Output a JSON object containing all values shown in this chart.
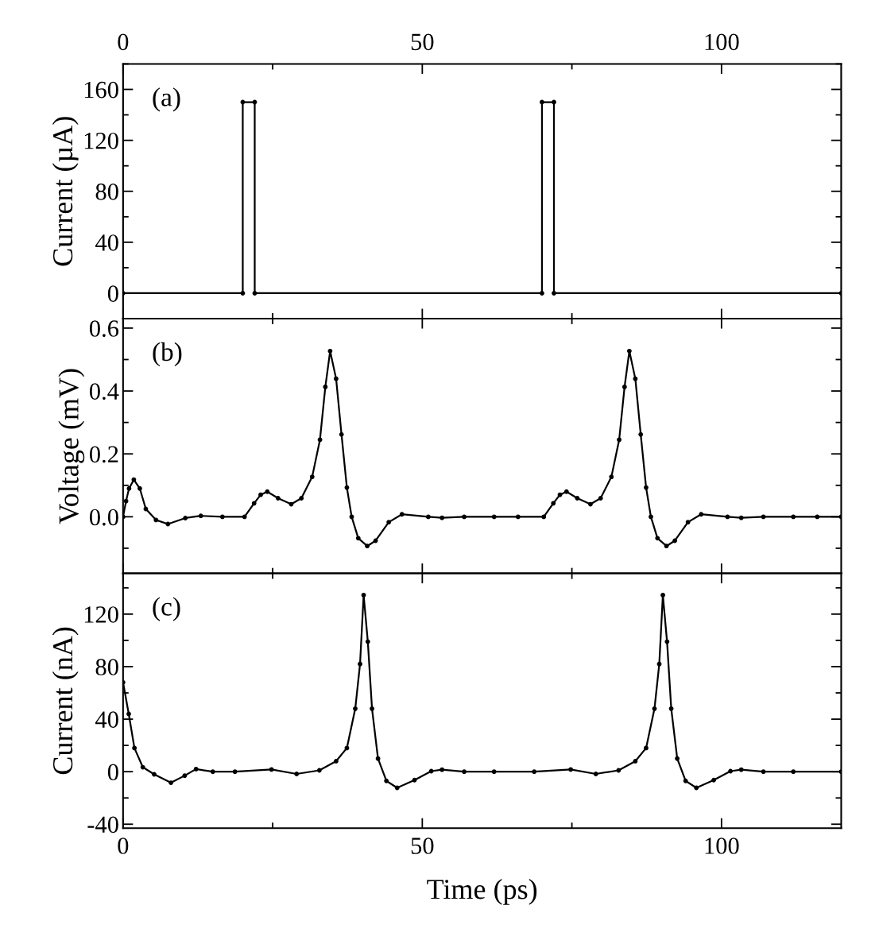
{
  "chart_data": [
    {
      "type": "line",
      "ylabel": "Current (µA)",
      "annotations": [
        "(a)"
      ],
      "marker": "circle",
      "line_style": "solid",
      "tick_labels": "y",
      "color": "#000000",
      "x": [
        0,
        20,
        20,
        22,
        22,
        70,
        70,
        72,
        72,
        120
      ],
      "values": [
        0,
        0,
        150,
        150,
        0,
        0,
        150,
        150,
        0,
        0
      ],
      "xlim": [
        0,
        120
      ],
      "xticks": [
        0,
        50,
        100
      ],
      "x2lim": [
        0,
        120
      ],
      "x2ticks": [
        0,
        50,
        100
      ],
      "ylim": [
        -20,
        180
      ],
      "yticks": [
        0,
        40,
        80,
        120,
        160
      ]
    },
    {
      "type": "line",
      "ylabel": "Voltage (mV)",
      "annotations": [
        "(b)"
      ],
      "marker": "circle",
      "line_style": "solid",
      "tick_labels": "y",
      "color": "#000000",
      "x": [
        0,
        0.5,
        1.0,
        1.8,
        2.8,
        3.8,
        5.5,
        7.5,
        10.4,
        13,
        16.6,
        20.3,
        21.9,
        23,
        24.1,
        25.9,
        28.1,
        29.8,
        31.6,
        32.9,
        33.8,
        34.6,
        35.6,
        36.5,
        37.4,
        38.2,
        39.3,
        40.8,
        42.2,
        44.4,
        46.6,
        51,
        53.3,
        57,
        62,
        66,
        70.3,
        71.9,
        73,
        74.1,
        75.9,
        78.1,
        79.8,
        81.6,
        82.9,
        83.8,
        84.6,
        85.6,
        86.5,
        87.4,
        88.2,
        89.3,
        90.8,
        92.2,
        94.4,
        96.6,
        101,
        103.3,
        107,
        112,
        116,
        120
      ],
      "values": [
        0.0,
        0.05,
        0.09,
        0.118,
        0.09,
        0.025,
        -0.01,
        -0.023,
        -0.004,
        0.003,
        0.0,
        0.0,
        0.043,
        0.07,
        0.08,
        0.059,
        0.04,
        0.059,
        0.127,
        0.245,
        0.413,
        0.527,
        0.439,
        0.262,
        0.093,
        0.0,
        -0.068,
        -0.093,
        -0.076,
        -0.017,
        0.008,
        0.0,
        -0.003,
        0.0,
        0.0,
        0.0,
        0.0,
        0.043,
        0.07,
        0.08,
        0.059,
        0.04,
        0.059,
        0.127,
        0.245,
        0.413,
        0.527,
        0.439,
        0.262,
        0.093,
        0.0,
        -0.068,
        -0.093,
        -0.076,
        -0.017,
        0.008,
        0.0,
        -0.003,
        0.0,
        0.0,
        0.0,
        0.0
      ],
      "xlim": [
        0,
        120
      ],
      "xticks": [
        0,
        50,
        100
      ],
      "ylim": [
        -0.18,
        0.63
      ],
      "yticks": [
        {
          "value": 0,
          "label": "0.0"
        },
        0.2,
        0.4,
        0.6
      ]
    },
    {
      "type": "line",
      "xlabel": "Time (ps)",
      "ylabel": "Current (nA)",
      "annotations": [
        "(c)"
      ],
      "marker": "circle",
      "line_style": "solid",
      "color": "#000000",
      "x": [
        0,
        0.95,
        1.9,
        3.3,
        5.2,
        8.0,
        10.3,
        12.2,
        15,
        18.7,
        24.8,
        29,
        32.8,
        35.6,
        37.4,
        38.8,
        39.6,
        40.2,
        40.9,
        41.6,
        42.6,
        44,
        45.8,
        48.7,
        51.5,
        53.3,
        57,
        62,
        68.7,
        74.8,
        79,
        82.8,
        85.6,
        87.4,
        88.8,
        89.6,
        90.2,
        90.9,
        91.6,
        92.6,
        94,
        95.8,
        98.7,
        101.5,
        103.3,
        107,
        112,
        120
      ],
      "values": [
        68,
        44,
        18,
        3.4,
        -2,
        -8.4,
        -3,
        2,
        0,
        0,
        1.7,
        -1.7,
        1,
        8,
        18,
        48,
        82,
        134.5,
        99,
        48,
        10,
        -7,
        -12.3,
        -6.4,
        0.4,
        1.5,
        0,
        0,
        0,
        1.7,
        -1.7,
        1,
        8,
        18,
        48,
        82,
        134.5,
        99,
        48,
        10,
        -7,
        -12.3,
        -6.4,
        0.4,
        1.5,
        0,
        0,
        0
      ],
      "xlim": [
        0,
        120
      ],
      "xticks": [
        0,
        50,
        100
      ],
      "ylim": [
        -43,
        151
      ],
      "yticks": [
        -40,
        0,
        40,
        80,
        120
      ]
    }
  ]
}
